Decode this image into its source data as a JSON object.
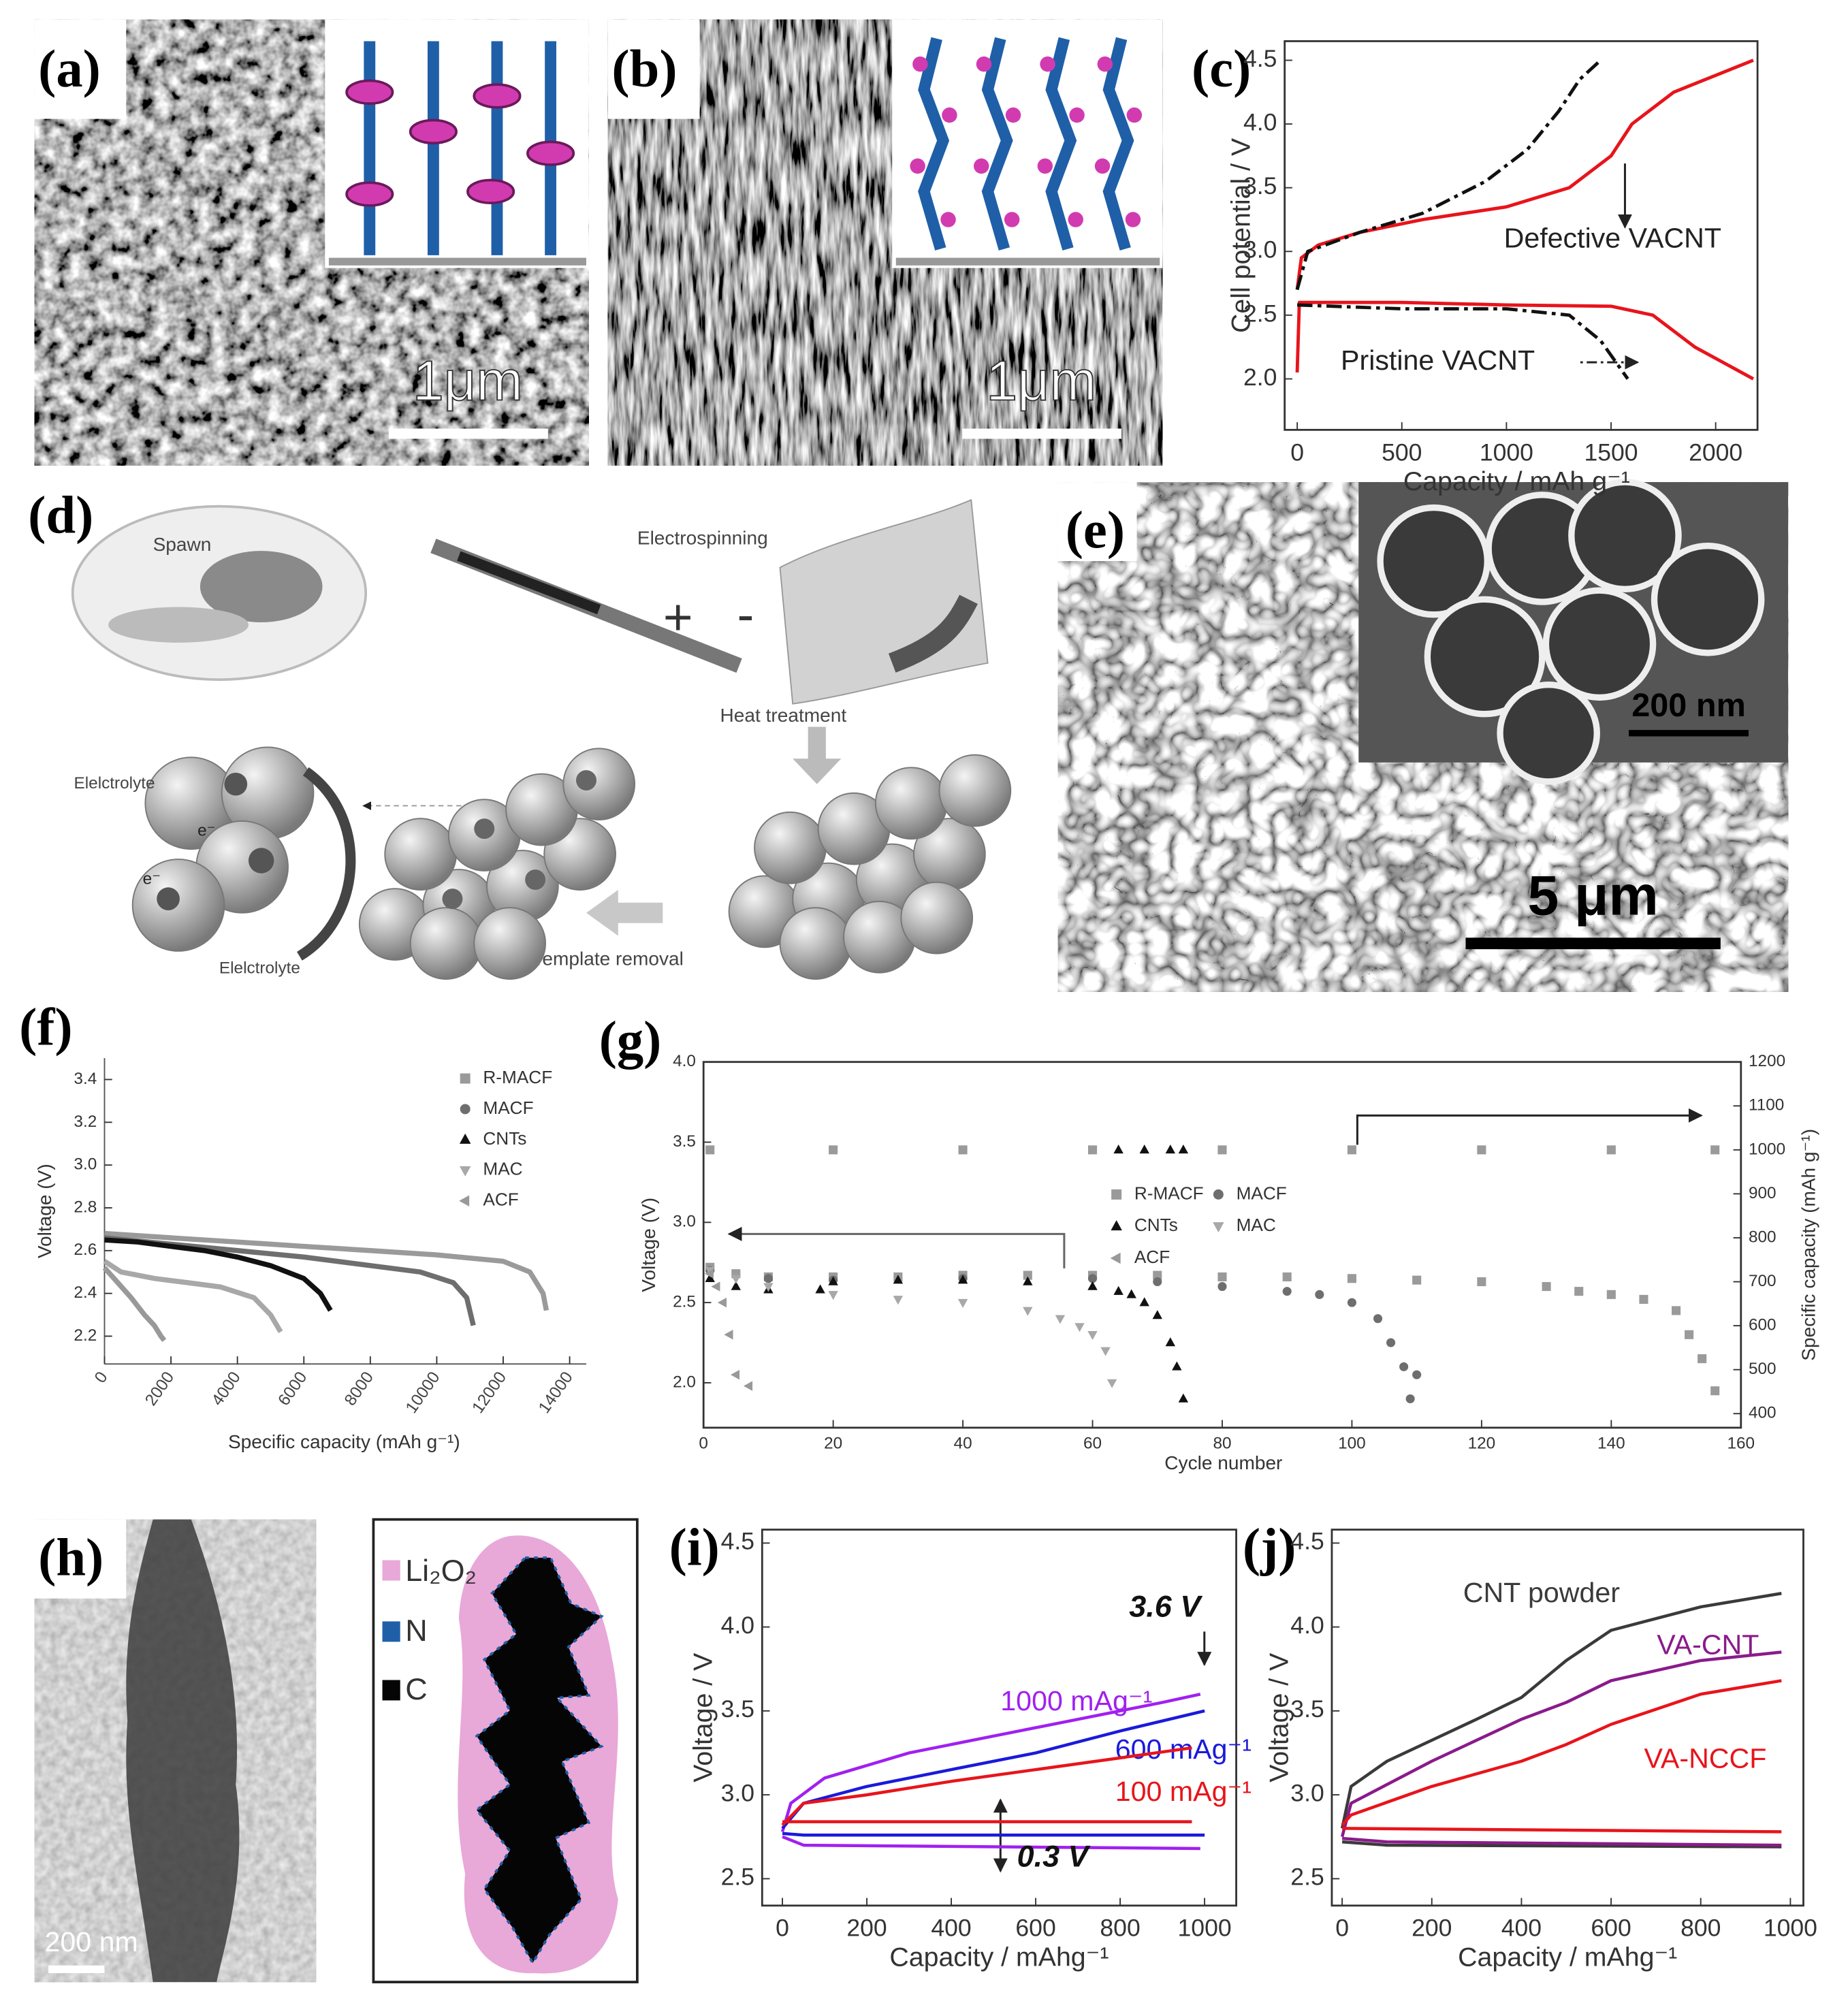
{
  "panels": {
    "a": {
      "label": "(a)",
      "scale_bar": "1μm"
    },
    "b": {
      "label": "(b)",
      "scale_bar": "1μm"
    },
    "d": {
      "label": "(d)",
      "texts": [
        "Spawn",
        "Electrospinning",
        "+",
        "-",
        "Heat treatment",
        "Template removal",
        "Elelctrolyte",
        "Elelctrolyte",
        "e⁻",
        "e⁻"
      ]
    },
    "e": {
      "label": "(e)",
      "inset_scale_bar": "200 nm",
      "scale_bar": "5 μm"
    },
    "h": {
      "label": "(h)",
      "scale_bar": "200 nm",
      "legend": [
        "Li₂O₂",
        "N",
        "C"
      ]
    }
  },
  "chart_data": [
    {
      "panel_label": "(c)",
      "type": "line",
      "xlabel": "Capacity / mAh g⁻¹",
      "ylabel": "Cell potential / V",
      "xlim": [
        -60,
        2200
      ],
      "ylim": [
        1.6,
        4.65
      ],
      "xticks": [
        0,
        500,
        1000,
        1500,
        2000
      ],
      "yticks": [
        {
          "value": 2,
          "label": "2.0"
        },
        2.5,
        {
          "value": 3,
          "label": "3.0"
        },
        3.5,
        {
          "value": 4,
          "label": "4.0"
        },
        4.5
      ],
      "series": [
        {
          "name": "Defective VACNT",
          "color": "#e8141b",
          "linestyle": "solid",
          "x": [
            0,
            20,
            100,
            300,
            600,
            1000,
            1300,
            1500,
            1600,
            1800,
            2180,
            null,
            0,
            10,
            20,
            500,
            1000,
            1500,
            1700,
            1900,
            2180
          ],
          "values": [
            2.7,
            2.95,
            3.05,
            3.15,
            3.25,
            3.35,
            3.5,
            3.75,
            4.0,
            4.25,
            4.5,
            null,
            2.05,
            2.6,
            2.6,
            2.6,
            2.58,
            2.57,
            2.5,
            2.25,
            2.0
          ]
        },
        {
          "name": "Pristine VACNT",
          "color": "#111111",
          "linestyle": "dashdot",
          "x": [
            0,
            50,
            300,
            600,
            900,
            1100,
            1250,
            1350,
            1450,
            null,
            0,
            500,
            1000,
            1300,
            1450,
            1580
          ],
          "values": [
            2.7,
            3.0,
            3.15,
            3.3,
            3.55,
            3.8,
            4.1,
            4.35,
            4.5,
            null,
            2.58,
            2.55,
            2.55,
            2.5,
            2.3,
            2.0
          ]
        }
      ]
    },
    {
      "panel_label": "(f)",
      "type": "line",
      "xlabel": "Specific capacity (mAh g⁻¹)",
      "ylabel": "Voltage (V)",
      "xlim": [
        0,
        14500
      ],
      "ylim": [
        2.07,
        3.5
      ],
      "xticks": [
        0,
        2000,
        4000,
        6000,
        8000,
        10000,
        12000,
        14000
      ],
      "yticks": [
        2.2,
        2.4,
        2.6,
        2.8,
        {
          "value": 3,
          "label": "3.0"
        },
        3.2,
        3.4
      ],
      "series": [
        {
          "name": "R-MACF",
          "color": "#9a9a9a",
          "marker": "square",
          "x": [
            0,
            2000,
            4000,
            6000,
            8000,
            10000,
            12000,
            12800,
            13200,
            13300
          ],
          "values": [
            2.68,
            2.66,
            2.64,
            2.62,
            2.6,
            2.58,
            2.55,
            2.5,
            2.4,
            2.32
          ]
        },
        {
          "name": "MACF",
          "color": "#6e6e6e",
          "marker": "circle",
          "x": [
            0,
            2000,
            4000,
            6000,
            8000,
            9500,
            10500,
            10900,
            11100
          ],
          "values": [
            2.66,
            2.63,
            2.6,
            2.57,
            2.53,
            2.5,
            2.45,
            2.38,
            2.25
          ]
        },
        {
          "name": "CNTs",
          "color": "#111111",
          "marker": "triangle",
          "x": [
            0,
            1000,
            2000,
            3000,
            4000,
            5000,
            6000,
            6500,
            6800
          ],
          "values": [
            2.65,
            2.64,
            2.62,
            2.6,
            2.57,
            2.53,
            2.47,
            2.4,
            2.32
          ]
        },
        {
          "name": "MAC",
          "color": "#a8a8a8",
          "marker": "down",
          "x": [
            0,
            500,
            1500,
            2500,
            3500,
            4500,
            5000,
            5300
          ],
          "values": [
            2.55,
            2.5,
            2.47,
            2.45,
            2.43,
            2.38,
            2.3,
            2.22
          ]
        },
        {
          "name": "ACF",
          "color": "#999999",
          "marker": "left",
          "x": [
            0,
            400,
            800,
            1200,
            1500,
            1700,
            1800
          ],
          "values": [
            2.52,
            2.45,
            2.38,
            2.3,
            2.25,
            2.2,
            2.18
          ]
        }
      ]
    },
    {
      "panel_label": "(g)",
      "type": "scatter",
      "xlabel": "Cycle number",
      "ylabel": "Voltage (V)",
      "y2label": "Specific capacity (mAh g⁻¹)",
      "xlim": [
        0,
        160
      ],
      "ylim": [
        1.72,
        4.0
      ],
      "y2lim": [
        368,
        1200
      ],
      "xticks": [
        0,
        20,
        40,
        60,
        80,
        100,
        120,
        140,
        160
      ],
      "yticks": [
        {
          "value": 2,
          "label": "2.0"
        },
        2.5,
        {
          "value": 3,
          "label": "3.0"
        },
        3.5,
        {
          "value": 4,
          "label": "4.0"
        }
      ],
      "y2ticks": [
        400,
        500,
        600,
        700,
        800,
        900,
        1000,
        1100,
        1200
      ],
      "series": [
        {
          "name": "R-MACF",
          "color": "#9a9a9a",
          "marker": "square",
          "x": [
            1,
            5,
            10,
            20,
            30,
            40,
            50,
            60,
            70,
            80,
            90,
            100,
            110,
            120,
            130,
            135,
            140,
            145,
            150,
            152,
            154,
            156
          ],
          "values": [
            2.72,
            2.68,
            2.66,
            2.66,
            2.66,
            2.67,
            2.67,
            2.67,
            2.67,
            2.66,
            2.66,
            2.65,
            2.64,
            2.63,
            2.6,
            2.57,
            2.55,
            2.52,
            2.45,
            2.3,
            2.15,
            1.95
          ]
        },
        {
          "name": "MACF",
          "color": "#6e6e6e",
          "marker": "circle",
          "x": [
            1,
            10,
            20,
            40,
            60,
            70,
            80,
            90,
            95,
            100,
            104,
            106,
            108,
            109,
            110
          ],
          "values": [
            2.7,
            2.65,
            2.64,
            2.65,
            2.65,
            2.63,
            2.6,
            2.57,
            2.55,
            2.5,
            2.4,
            2.25,
            2.1,
            1.9,
            2.05
          ]
        },
        {
          "name": "CNTs",
          "color": "#111111",
          "marker": "triangle",
          "x": [
            1,
            5,
            10,
            18,
            20,
            30,
            40,
            50,
            60,
            64,
            66,
            68,
            70,
            72,
            73,
            74
          ],
          "values": [
            2.65,
            2.6,
            2.58,
            2.58,
            2.63,
            2.64,
            2.64,
            2.63,
            2.6,
            2.57,
            2.55,
            2.5,
            2.42,
            2.25,
            2.1,
            1.9
          ]
        },
        {
          "name": "MAC",
          "color": "#a8a8a8",
          "marker": "down",
          "x": [
            1,
            5,
            10,
            20,
            30,
            40,
            50,
            55,
            58,
            60,
            62,
            63
          ],
          "values": [
            2.7,
            2.65,
            2.6,
            2.55,
            2.52,
            2.5,
            2.45,
            2.4,
            2.35,
            2.3,
            2.2,
            2.0
          ]
        },
        {
          "name": "ACF",
          "color": "#999999",
          "marker": "left",
          "x": [
            1,
            2,
            3,
            4,
            5,
            7
          ],
          "values": [
            2.68,
            2.6,
            2.5,
            2.3,
            2.05,
            1.98
          ]
        },
        {
          "color": "#9a9a9a",
          "marker": "square",
          "axis": "y2",
          "x": [
            1,
            20,
            40,
            60,
            80,
            100,
            120,
            140,
            156
          ],
          "values": [
            1000,
            1000,
            1000,
            1000,
            1000,
            1000,
            1000,
            1000,
            1000
          ]
        },
        {
          "color": "#111111",
          "marker": "triangle",
          "axis": "y2",
          "x": [
            64,
            68,
            72,
            74
          ],
          "values": [
            1000,
            1000,
            1000,
            1000
          ]
        }
      ]
    },
    {
      "panel_label": "(i)",
      "type": "line",
      "xlabel": "Capacity / mAhg⁻¹",
      "ylabel": "Voltage / V",
      "xlim": [
        -48,
        1075
      ],
      "ylim": [
        2.34,
        4.58
      ],
      "xticks": [
        0,
        200,
        400,
        600,
        800,
        1000
      ],
      "yticks": [
        2.5,
        {
          "value": 3,
          "label": "3.0"
        },
        3.5,
        {
          "value": 4,
          "label": "4.0"
        },
        4.5
      ],
      "annotations": [
        "3.6 V",
        "0.3 V"
      ],
      "series": [
        {
          "name": "1000 mAg⁻¹",
          "color": "#a020f0",
          "x": [
            0,
            20,
            100,
            300,
            500,
            700,
            900,
            990,
            null,
            0,
            50,
            990
          ],
          "values": [
            2.78,
            2.95,
            3.1,
            3.25,
            3.35,
            3.45,
            3.55,
            3.6,
            null,
            2.75,
            2.7,
            2.68
          ]
        },
        {
          "name": "600 mAg⁻¹",
          "color": "#1a1adb",
          "x": [
            0,
            50,
            200,
            400,
            600,
            800,
            1000,
            null,
            0,
            50,
            1000
          ],
          "values": [
            2.8,
            2.95,
            3.05,
            3.15,
            3.25,
            3.38,
            3.5,
            null,
            2.77,
            2.76,
            2.76
          ]
        },
        {
          "name": "100 mAg⁻¹",
          "color": "#e8141b",
          "x": [
            0,
            50,
            200,
            400,
            600,
            800,
            970,
            null,
            0,
            970
          ],
          "values": [
            2.82,
            2.95,
            3.0,
            3.08,
            3.15,
            3.22,
            3.28,
            null,
            2.84,
            2.84
          ]
        }
      ]
    },
    {
      "panel_label": "(j)",
      "type": "line",
      "xlabel": "Capacity / mAhg⁻¹",
      "ylabel": "Voltage / V",
      "xlim": [
        -23,
        1029
      ],
      "ylim": [
        2.34,
        4.58
      ],
      "xticks": [
        0,
        200,
        400,
        600,
        800,
        1000
      ],
      "yticks": [
        2.5,
        {
          "value": 3,
          "label": "3.0"
        },
        3.5,
        {
          "value": 4,
          "label": "4.0"
        },
        4.5
      ],
      "series": [
        {
          "name": "CNT powder",
          "color": "#3a3a3a",
          "x": [
            0,
            20,
            100,
            300,
            400,
            500,
            600,
            800,
            980,
            null,
            0,
            100,
            980
          ],
          "values": [
            2.8,
            3.05,
            3.2,
            3.45,
            3.58,
            3.8,
            3.98,
            4.12,
            4.2,
            null,
            2.72,
            2.7,
            2.69
          ]
        },
        {
          "name": "VA-CNT",
          "color": "#8b1a8b",
          "x": [
            0,
            20,
            200,
            400,
            500,
            600,
            800,
            980,
            null,
            0,
            100,
            980
          ],
          "values": [
            2.75,
            2.95,
            3.2,
            3.45,
            3.55,
            3.68,
            3.8,
            3.85,
            null,
            2.74,
            2.72,
            2.7
          ]
        },
        {
          "name": "VA-NCCF",
          "color": "#e8141b",
          "x": [
            0,
            20,
            200,
            400,
            500,
            600,
            800,
            980,
            null,
            0,
            980
          ],
          "values": [
            2.82,
            2.88,
            3.05,
            3.2,
            3.3,
            3.42,
            3.6,
            3.68,
            null,
            2.8,
            2.78
          ]
        }
      ]
    }
  ]
}
